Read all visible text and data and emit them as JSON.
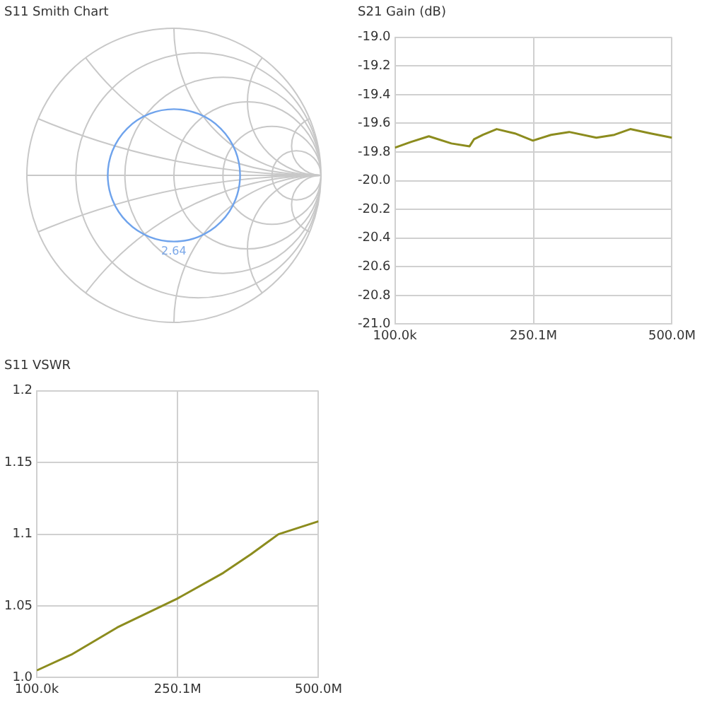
{
  "chart_data": [
    {
      "type": "other",
      "title": "S11 Smith Chart",
      "annotations": [
        "2.64"
      ]
    },
    {
      "type": "line",
      "title": "S21 Gain (dB)",
      "grid": true,
      "marker": "none",
      "legend": false,
      "x": [
        100000,
        28600000,
        61300000,
        102000000,
        134800000,
        143000000,
        159000000,
        183800000,
        216500000,
        249000000,
        281900000,
        314500000,
        363600000,
        396000000,
        424800000,
        461600000,
        500000000
      ],
      "series": [
        {
          "color": "#8c8c1e",
          "values": [
            -19.77,
            -19.73,
            -19.69,
            -19.74,
            -19.76,
            -19.71,
            -19.68,
            -19.64,
            -19.67,
            -19.72,
            -19.68,
            -19.66,
            -19.7,
            -19.68,
            -19.64,
            -19.67,
            -19.7
          ]
        }
      ],
      "xlim": [
        100000,
        500000000
      ],
      "xticks": [
        {
          "value": 100000,
          "label": "100.0k"
        },
        {
          "value": 250050000,
          "label": "250.1M"
        },
        {
          "value": 500000000,
          "label": "500.0M"
        }
      ],
      "ylim": [
        -21,
        -19
      ],
      "yticks": [
        {
          "value": -21,
          "label": "-21.0"
        },
        {
          "value": -20.8,
          "label": "-20.8"
        },
        {
          "value": -20.6,
          "label": "-20.6"
        },
        {
          "value": -20.4,
          "label": "-20.4"
        },
        {
          "value": -20.2,
          "label": "-20.2"
        },
        {
          "value": -20,
          "label": "-20.0"
        },
        {
          "value": -19.8,
          "label": "-19.8"
        },
        {
          "value": -19.6,
          "label": "-19.6"
        },
        {
          "value": -19.4,
          "label": "-19.4"
        },
        {
          "value": -19.2,
          "label": "-19.2"
        },
        {
          "value": -19,
          "label": "-19.0"
        }
      ]
    },
    {
      "type": "line",
      "title": "S11 VSWR",
      "grid": true,
      "marker": "none",
      "legend": false,
      "x": [
        100000,
        61300000,
        143000000,
        249000000,
        331000000,
        380000000,
        429000000,
        500000000
      ],
      "series": [
        {
          "color": "#8c8c1e",
          "values": [
            1.005,
            1.016,
            1.035,
            1.055,
            1.073,
            1.086,
            1.1,
            1.109
          ]
        }
      ],
      "xlim": [
        100000,
        500000000
      ],
      "xticks": [
        {
          "value": 100000,
          "label": "100.0k"
        },
        {
          "value": 250050000,
          "label": "250.1M"
        },
        {
          "value": 500000000,
          "label": "500.0M"
        }
      ],
      "ylim": [
        1,
        1.2
      ],
      "yticks": [
        {
          "value": 1,
          "label": "1.0"
        },
        1.05,
        1.1,
        1.15,
        1.2
      ]
    }
  ]
}
